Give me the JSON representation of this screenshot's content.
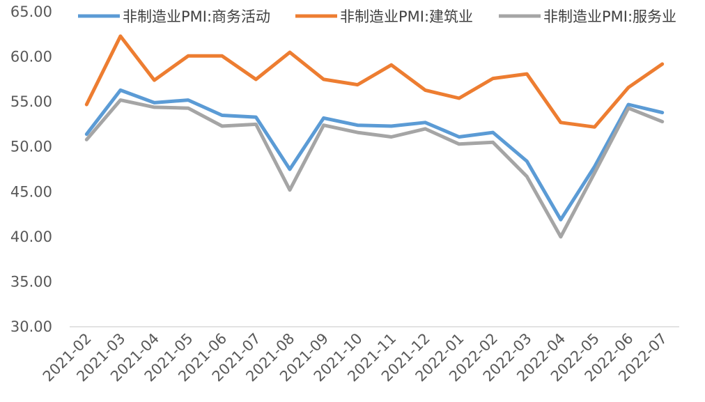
{
  "chart_data": {
    "type": "line",
    "title": "",
    "xlabel": "",
    "ylabel": "",
    "ylim": [
      30,
      65
    ],
    "yticks": [
      "30.00",
      "35.00",
      "40.00",
      "45.00",
      "50.00",
      "55.00",
      "60.00",
      "65.00"
    ],
    "grid": false,
    "legend_position": "top",
    "categories": [
      "2021-02",
      "2021-03",
      "2021-04",
      "2021-05",
      "2021-06",
      "2021-07",
      "2021-08",
      "2021-09",
      "2021-10",
      "2021-11",
      "2021-12",
      "2022-01",
      "2022-02",
      "2022-03",
      "2022-04",
      "2022-05",
      "2022-06",
      "2022-07"
    ],
    "series": [
      {
        "name": "非制造业PMI:商务活动",
        "color": "#5B9BD5",
        "values": [
          51.4,
          56.3,
          54.9,
          55.2,
          53.5,
          53.3,
          47.5,
          53.2,
          52.4,
          52.3,
          52.7,
          51.1,
          51.6,
          48.4,
          41.9,
          47.8,
          54.7,
          53.8
        ]
      },
      {
        "name": "非制造业PMI:建筑业",
        "color": "#ED7D31",
        "values": [
          54.7,
          62.3,
          57.4,
          60.1,
          60.1,
          57.5,
          60.5,
          57.5,
          56.9,
          59.1,
          56.3,
          55.4,
          57.6,
          58.1,
          52.7,
          52.2,
          56.6,
          59.2
        ]
      },
      {
        "name": "非制造业PMI:服务业",
        "color": "#A5A5A5",
        "values": [
          50.8,
          55.2,
          54.4,
          54.3,
          52.3,
          52.5,
          45.2,
          52.4,
          51.6,
          51.1,
          52.0,
          50.3,
          50.5,
          46.7,
          40.0,
          47.1,
          54.3,
          52.8
        ]
      }
    ]
  }
}
